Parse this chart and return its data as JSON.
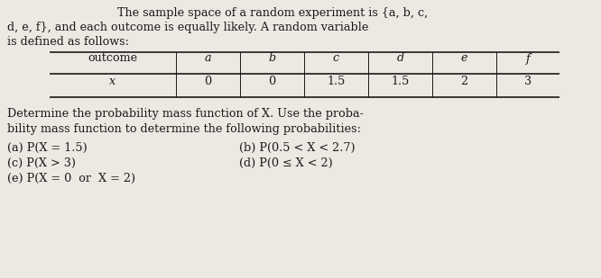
{
  "bg_color": "#ece9e3",
  "text_color": "#1a1a1a",
  "title_line1": "The sample space of a random experiment is {a, b, c,",
  "title_line2": "d, e, f}, and each outcome is equally likely. A random variable",
  "title_line3": "is defined as follows:",
  "table_header": [
    "outcome",
    "a",
    "b",
    "c",
    "d",
    "e",
    "f"
  ],
  "table_row_label": "x",
  "table_row_values": [
    "0",
    "0",
    "1.5",
    "1.5",
    "2",
    "3"
  ],
  "body_line1": "Determine the probability mass function of X. Use the proba-",
  "body_line2": "bility mass function to determine the following probabilities:",
  "prob_a": "(a) P(X = 1.5)",
  "prob_b": "(b) P(0.5 < X < 2.7)",
  "prob_c": "(c) P(X > 3)",
  "prob_d": "(d) P(0 ≤ X < 2)",
  "prob_e": "(e) P(X = 0  or  X = 2)",
  "fontsize": 9.2,
  "font": "DejaVu Serif"
}
